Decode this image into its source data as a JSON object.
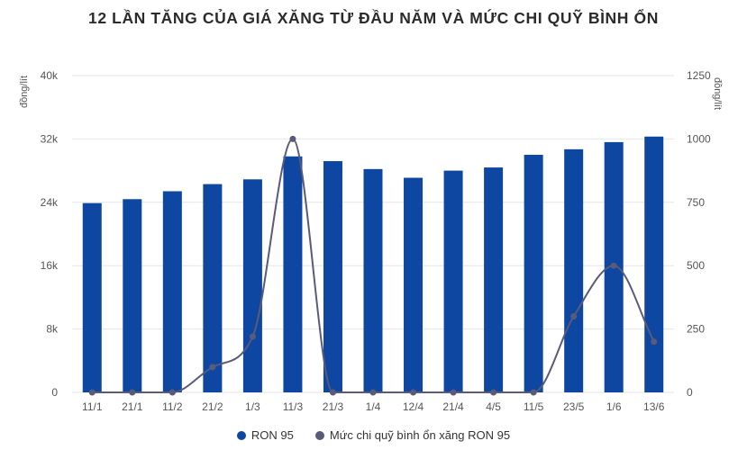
{
  "title": "12 LẦN TĂNG CỦA GIÁ XĂNG TỪ ĐẦU NĂM VÀ MỨC CHI QUỸ BÌNH ỔN",
  "colors": {
    "bar": "#0d47a1",
    "line": "#5a5a7a",
    "grid": "#e6e6e6"
  },
  "chart_data": {
    "type": "bar",
    "categories": [
      "11/1",
      "21/1",
      "11/2",
      "21/2",
      "1/3",
      "11/3",
      "21/3",
      "1/4",
      "12/4",
      "21/4",
      "4/5",
      "11/5",
      "23/5",
      "1/6",
      "13/6"
    ],
    "series": [
      {
        "name": "RON 95",
        "type": "bar",
        "axis": "left",
        "values": [
          23900,
          24400,
          25400,
          26300,
          26900,
          29800,
          29200,
          28200,
          27100,
          28000,
          28400,
          30000,
          30700,
          31600,
          32300
        ]
      },
      {
        "name": "Mức chi quỹ bình ổn xăng RON 95",
        "type": "line",
        "axis": "right",
        "values": [
          0,
          0,
          0,
          100,
          220,
          1000,
          0,
          0,
          0,
          0,
          0,
          0,
          300,
          500,
          200
        ]
      }
    ],
    "yleft": {
      "ylim": [
        0,
        40000
      ],
      "ticks": [
        "0",
        "8k",
        "16k",
        "24k",
        "32k",
        "40k"
      ],
      "unit": "đồng/lít"
    },
    "yright": {
      "ylim": [
        0,
        1250
      ],
      "ticks": [
        "0",
        "250",
        "500",
        "750",
        "1000",
        "1250"
      ],
      "unit": "đồng/lít"
    },
    "grid": true,
    "legend": "bottom"
  }
}
